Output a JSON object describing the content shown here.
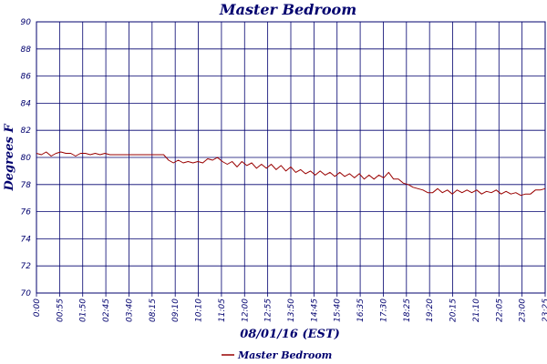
{
  "chart_data": {
    "type": "line",
    "title": "Master Bedroom",
    "xlabel": "08/01/16 (EST)",
    "ylabel": "Degrees F",
    "ylim": [
      70,
      90
    ],
    "yticks": [
      "70",
      "72",
      "74",
      "76",
      "78",
      "80",
      "82",
      "84",
      "86",
      "88",
      "90"
    ],
    "xticks": [
      "0:00",
      "00:55",
      "01:50",
      "02:45",
      "03:40",
      "08:15",
      "09:10",
      "10:10",
      "11:05",
      "12:00",
      "12:55",
      "13:50",
      "14:45",
      "15:40",
      "16:35",
      "17:30",
      "18:25",
      "19:20",
      "20:15",
      "21:10",
      "22:05",
      "23:00",
      "23:25"
    ],
    "grid": true,
    "legend": "bottom",
    "line_color": "#990000",
    "series": [
      {
        "name": "Master Bedroom",
        "values": [
          80.3,
          80.2,
          80.4,
          80.1,
          80.3,
          80.4,
          80.3,
          80.3,
          80.1,
          80.3,
          80.3,
          80.2,
          80.3,
          80.2,
          80.3,
          80.2,
          80.2,
          80.2,
          80.2,
          80.2,
          80.2,
          80.2,
          80.2,
          80.2,
          80.2,
          80.2,
          80.2,
          79.8,
          79.6,
          79.8,
          79.6,
          79.7,
          79.6,
          79.7,
          79.6,
          79.9,
          79.8,
          80.0,
          79.7,
          79.5,
          79.7,
          79.3,
          79.7,
          79.4,
          79.6,
          79.2,
          79.5,
          79.2,
          79.5,
          79.1,
          79.4,
          79.0,
          79.3,
          78.9,
          79.1,
          78.8,
          79.0,
          78.7,
          79.0,
          78.7,
          78.9,
          78.6,
          78.9,
          78.6,
          78.8,
          78.5,
          78.8,
          78.4,
          78.7,
          78.4,
          78.7,
          78.5,
          78.9,
          78.4,
          78.4,
          78.1,
          78.0,
          77.8,
          77.7,
          77.6,
          77.4,
          77.4,
          77.7,
          77.4,
          77.6,
          77.3,
          77.6,
          77.4,
          77.6,
          77.4,
          77.6,
          77.3,
          77.5,
          77.4,
          77.6,
          77.3,
          77.5,
          77.3,
          77.4,
          77.2,
          77.3,
          77.3,
          77.6,
          77.6,
          77.7
        ]
      }
    ]
  }
}
